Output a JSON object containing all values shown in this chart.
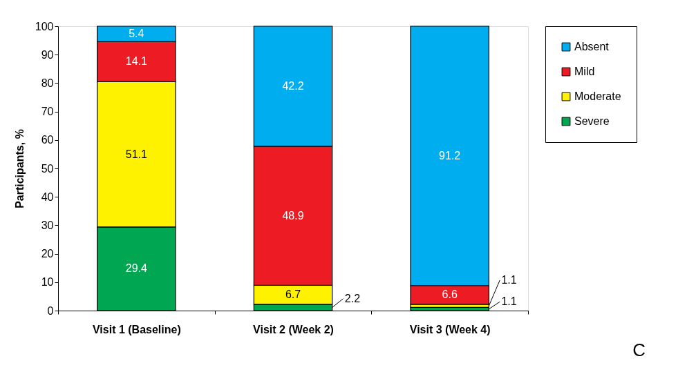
{
  "chart_data": {
    "type": "bar",
    "stacked": true,
    "ylabel": "Participants, %",
    "categories": [
      "Visit 1 (Baseline)",
      "Visit 2 (Week 2)",
      "Visit 3 (Week 4)"
    ],
    "series": [
      {
        "name": "Severe",
        "color": "#00a651",
        "values": [
          29.4,
          2.2,
          1.1
        ]
      },
      {
        "name": "Moderate",
        "color": "#fff200",
        "values": [
          51.1,
          6.7,
          1.1
        ]
      },
      {
        "name": "Mild",
        "color": "#ed1c24",
        "values": [
          14.1,
          48.9,
          6.6
        ]
      },
      {
        "name": "Absent",
        "color": "#00aeef",
        "values": [
          5.4,
          42.2,
          91.2
        ]
      }
    ],
    "ylim": [
      0,
      100
    ],
    "yticks": [
      0,
      10,
      20,
      30,
      40,
      50,
      60,
      70,
      80,
      90,
      100
    ],
    "grid": false,
    "legend": "right",
    "data_labels": true,
    "annotations": [
      "C"
    ]
  }
}
